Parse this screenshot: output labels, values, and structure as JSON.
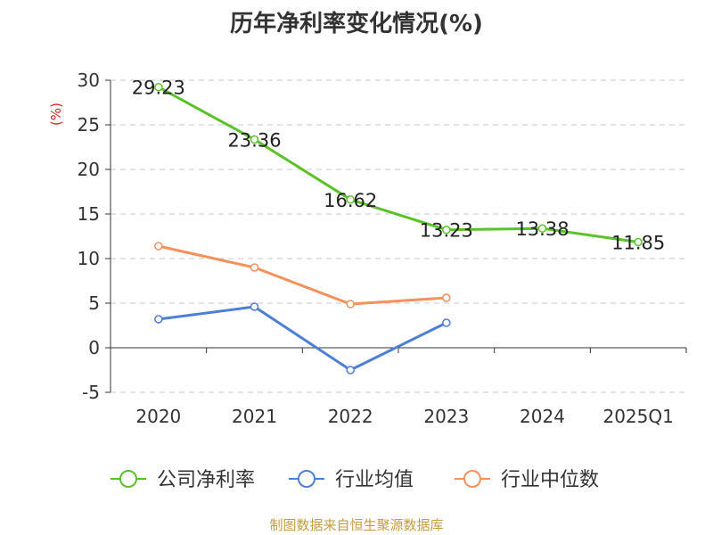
{
  "chart_data": {
    "type": "line",
    "title": "历年净利率变化情况(%)",
    "ylabel": "(%)",
    "xlabel": "",
    "categories": [
      "2020",
      "2021",
      "2022",
      "2023",
      "2024",
      "2025Q1"
    ],
    "ylim": [
      -5,
      30
    ],
    "yticks": [
      -5,
      0,
      5,
      10,
      15,
      20,
      25,
      30
    ],
    "grid": "horizontal dashed",
    "legend_position": "bottom",
    "series": [
      {
        "name": "公司净利率",
        "color": "#5ac229",
        "values": [
          29.23,
          23.36,
          16.62,
          13.23,
          13.38,
          11.85
        ],
        "labels": [
          "29.23",
          "23.36",
          "16.62",
          "13.23",
          "13.38",
          "11.85"
        ]
      },
      {
        "name": "行业均值",
        "color": "#4e7fd8",
        "values": [
          3.2,
          4.6,
          -2.5,
          2.8,
          null,
          null
        ]
      },
      {
        "name": "行业中位数",
        "color": "#f5915b",
        "values": [
          11.4,
          9.0,
          4.9,
          5.6,
          null,
          null
        ]
      }
    ]
  },
  "footer": {
    "source": "制图数据来自恒生聚源数据库"
  }
}
